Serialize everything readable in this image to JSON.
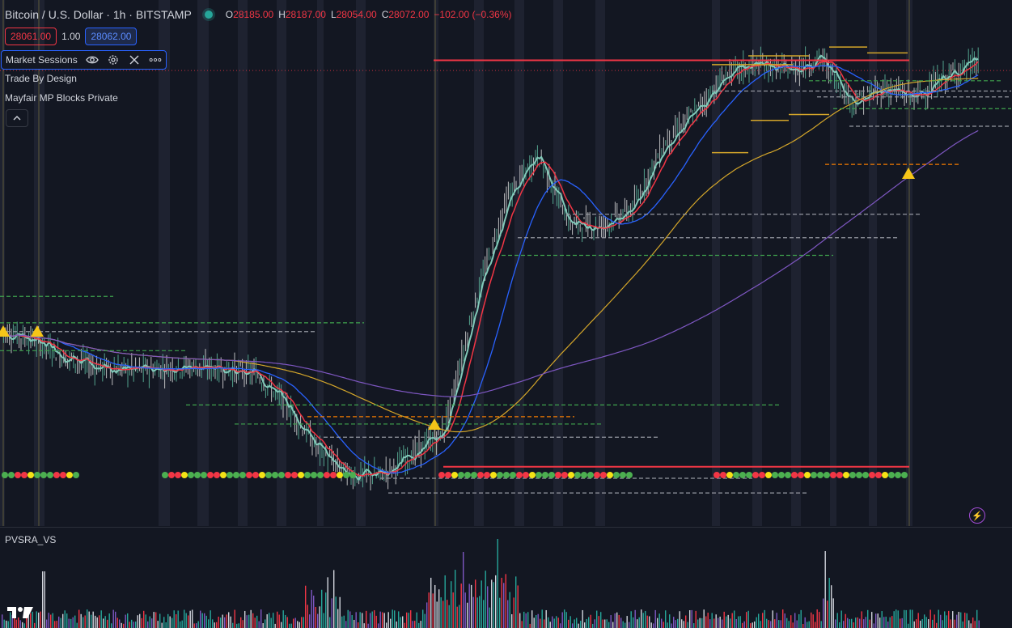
{
  "symbol": {
    "title": "Bitcoin / U.S. Dollar · 1h · BITSTAMP",
    "open_label": "O",
    "open": "28185.00",
    "high_label": "H",
    "high": "28187.00",
    "low_label": "L",
    "low": "28054.00",
    "close_label": "C",
    "close": "28072.00",
    "change": "−102.00 (−0.36%)",
    "status": "market-open"
  },
  "quote": {
    "sell": "28061.00",
    "spread": "1.00",
    "buy": "28062.00"
  },
  "indicators": [
    {
      "name": "Market Sessions",
      "icons": [
        "eye-icon",
        "gear-icon",
        "close-icon",
        "more-icon"
      ]
    },
    {
      "name": "Trade By Design"
    },
    {
      "name": "Mayfair MP Blocks Private"
    }
  ],
  "volume_pane": {
    "title": "PVSRA_VS"
  },
  "colors": {
    "background": "#131722",
    "up": "#26a69a",
    "down": "#f23645",
    "ema_fast": "#81c9b9",
    "ema_red": "#f23645",
    "ema_blue": "#2962ff",
    "ema_yellow": "#d4a62a",
    "ema_purple": "#7e57c2",
    "accent": "#2962ff"
  },
  "chart_data": {
    "type": "line",
    "title": "Bitcoin / U.S. Dollar · 1h · BITSTAMP",
    "series": [
      {
        "values": [
          27300,
          27270,
          27210,
          27180,
          27170,
          27175,
          27180,
          27170,
          27160,
          27050,
          26900,
          26810,
          26810,
          26880,
          26960,
          27400,
          27750,
          27900,
          27670,
          27660,
          27720,
          27940,
          28050,
          28180,
          28210,
          28190,
          28230,
          28080,
          28130,
          28100,
          28170,
          28220
        ]
      }
    ],
    "levels": [
      28225,
      28190,
      28161,
      27210,
      27000,
      27190
    ]
  }
}
